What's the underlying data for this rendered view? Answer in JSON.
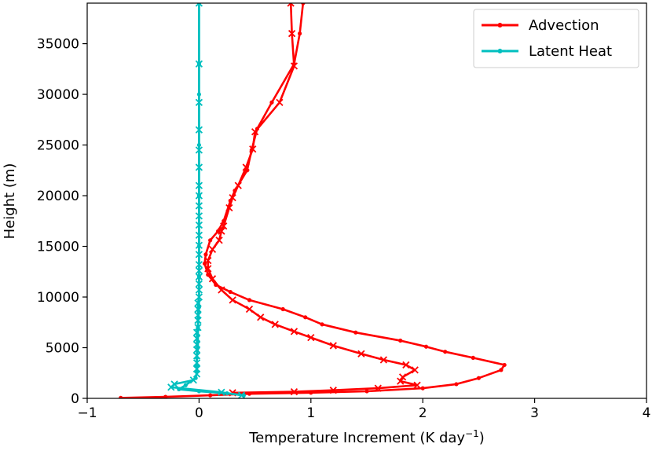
{
  "chart_data": {
    "type": "line",
    "xlabel": "Temperature Increment (K day",
    "xlabel_sup": "−1",
    "xlabel_end": ")",
    "ylabel": "Height (m)",
    "xlim": [
      -1,
      4
    ],
    "ylim": [
      0,
      39000
    ],
    "x_ticks": [
      -1,
      0,
      1,
      2,
      3,
      4
    ],
    "x_tick_labels": [
      "−1",
      "0",
      "1",
      "2",
      "3",
      "4"
    ],
    "y_ticks": [
      0,
      5000,
      10000,
      15000,
      20000,
      25000,
      30000,
      35000
    ],
    "y_tick_labels": [
      "0",
      "5000",
      "10000",
      "15000",
      "20000",
      "25000",
      "30000",
      "35000"
    ],
    "grid": false,
    "legend_position": "top-right",
    "legend": [
      {
        "label": "Advection",
        "color": "#ff0000"
      },
      {
        "label": "Latent Heat",
        "color": "#00bfbf"
      }
    ],
    "series": [
      {
        "name": "Advection",
        "color": "#ff0000",
        "marker": "dot",
        "points": [
          [
            -0.7,
            50
          ],
          [
            -0.3,
            150
          ],
          [
            0.1,
            300
          ],
          [
            0.45,
            450
          ],
          [
            1.0,
            560
          ],
          [
            1.5,
            700
          ],
          [
            2.0,
            1000
          ],
          [
            2.3,
            1400
          ],
          [
            2.5,
            2000
          ],
          [
            2.7,
            2800
          ],
          [
            2.73,
            3300
          ],
          [
            2.45,
            4000
          ],
          [
            2.2,
            4600
          ],
          [
            2.03,
            5100
          ],
          [
            1.8,
            5700
          ],
          [
            1.4,
            6500
          ],
          [
            1.1,
            7300
          ],
          [
            0.95,
            8000
          ],
          [
            0.75,
            8800
          ],
          [
            0.45,
            9700
          ],
          [
            0.28,
            10500
          ],
          [
            0.15,
            11200
          ],
          [
            0.08,
            12200
          ],
          [
            0.05,
            13300
          ],
          [
            0.06,
            14200
          ],
          [
            0.1,
            15600
          ],
          [
            0.17,
            16500
          ],
          [
            0.22,
            17500
          ],
          [
            0.28,
            19500
          ],
          [
            0.32,
            20500
          ],
          [
            0.43,
            22500
          ],
          [
            0.47,
            24500
          ],
          [
            0.52,
            26600
          ],
          [
            0.65,
            29200
          ],
          [
            0.85,
            33000
          ],
          [
            0.9,
            36000
          ],
          [
            0.93,
            39000
          ]
        ]
      },
      {
        "name": "Advection",
        "color": "#ff0000",
        "marker": "x",
        "points": [
          [
            0.3,
            550
          ],
          [
            0.85,
            650
          ],
          [
            1.2,
            800
          ],
          [
            1.6,
            1000
          ],
          [
            1.95,
            1300
          ],
          [
            1.8,
            1700
          ],
          [
            1.82,
            2100
          ],
          [
            1.93,
            2800
          ],
          [
            1.85,
            3300
          ],
          [
            1.65,
            3800
          ],
          [
            1.45,
            4400
          ],
          [
            1.2,
            5200
          ],
          [
            1.0,
            6000
          ],
          [
            0.85,
            6600
          ],
          [
            0.68,
            7300
          ],
          [
            0.55,
            8000
          ],
          [
            0.45,
            8800
          ],
          [
            0.3,
            9700
          ],
          [
            0.2,
            10700
          ],
          [
            0.12,
            11800
          ],
          [
            0.08,
            12800
          ],
          [
            0.08,
            13600
          ],
          [
            0.12,
            14700
          ],
          [
            0.18,
            15600
          ],
          [
            0.2,
            16500
          ],
          [
            0.22,
            17000
          ],
          [
            0.27,
            18800
          ],
          [
            0.3,
            19800
          ],
          [
            0.35,
            21000
          ],
          [
            0.42,
            22800
          ],
          [
            0.48,
            24600
          ],
          [
            0.5,
            26300
          ],
          [
            0.72,
            29200
          ],
          [
            0.85,
            32800
          ],
          [
            0.83,
            36000
          ],
          [
            0.82,
            39000
          ]
        ]
      },
      {
        "name": "Latent Heat",
        "color": "#00bfbf",
        "marker": "dot",
        "points": [
          [
            0.4,
            300
          ],
          [
            0.25,
            500
          ],
          [
            0.0,
            700
          ],
          [
            -0.18,
            900
          ],
          [
            -0.12,
            1300
          ],
          [
            -0.03,
            2000
          ],
          [
            -0.02,
            2600
          ],
          [
            -0.02,
            3200
          ],
          [
            -0.02,
            4000
          ],
          [
            -0.01,
            5000
          ],
          [
            -0.01,
            7000
          ],
          [
            0.0,
            9000
          ],
          [
            0.0,
            12000
          ],
          [
            0.0,
            15000
          ],
          [
            0.0,
            20000
          ],
          [
            0.0,
            25000
          ],
          [
            0.0,
            30000
          ],
          [
            0.0,
            33000
          ],
          [
            0.0,
            39000
          ]
        ]
      },
      {
        "name": "Latent Heat",
        "color": "#00bfbf",
        "marker": "x",
        "points": [
          [
            0.38,
            300
          ],
          [
            0.2,
            600
          ],
          [
            -0.25,
            1100
          ],
          [
            -0.22,
            1400
          ],
          [
            -0.05,
            1800
          ],
          [
            -0.02,
            2400
          ],
          [
            -0.02,
            2900
          ],
          [
            -0.02,
            3500
          ],
          [
            -0.02,
            4200
          ],
          [
            -0.02,
            4800
          ],
          [
            -0.02,
            5300
          ],
          [
            -0.02,
            5900
          ],
          [
            -0.02,
            6500
          ],
          [
            -0.01,
            7000
          ],
          [
            -0.01,
            7700
          ],
          [
            -0.01,
            8200
          ],
          [
            -0.01,
            8800
          ],
          [
            -0.01,
            9400
          ],
          [
            0.0,
            10000
          ],
          [
            0.0,
            10700
          ],
          [
            0.0,
            11300
          ],
          [
            0.0,
            12000
          ],
          [
            0.0,
            12600
          ],
          [
            0.0,
            13200
          ],
          [
            0.0,
            14200
          ],
          [
            0.0,
            15100
          ],
          [
            0.0,
            16100
          ],
          [
            0.0,
            17100
          ],
          [
            0.0,
            18000
          ],
          [
            0.0,
            19000
          ],
          [
            0.0,
            20000
          ],
          [
            0.0,
            21000
          ],
          [
            0.0,
            22800
          ],
          [
            0.0,
            24500
          ],
          [
            0.0,
            26500
          ],
          [
            0.0,
            29200
          ],
          [
            0.0,
            33000
          ],
          [
            0.0,
            39000
          ]
        ]
      }
    ]
  }
}
